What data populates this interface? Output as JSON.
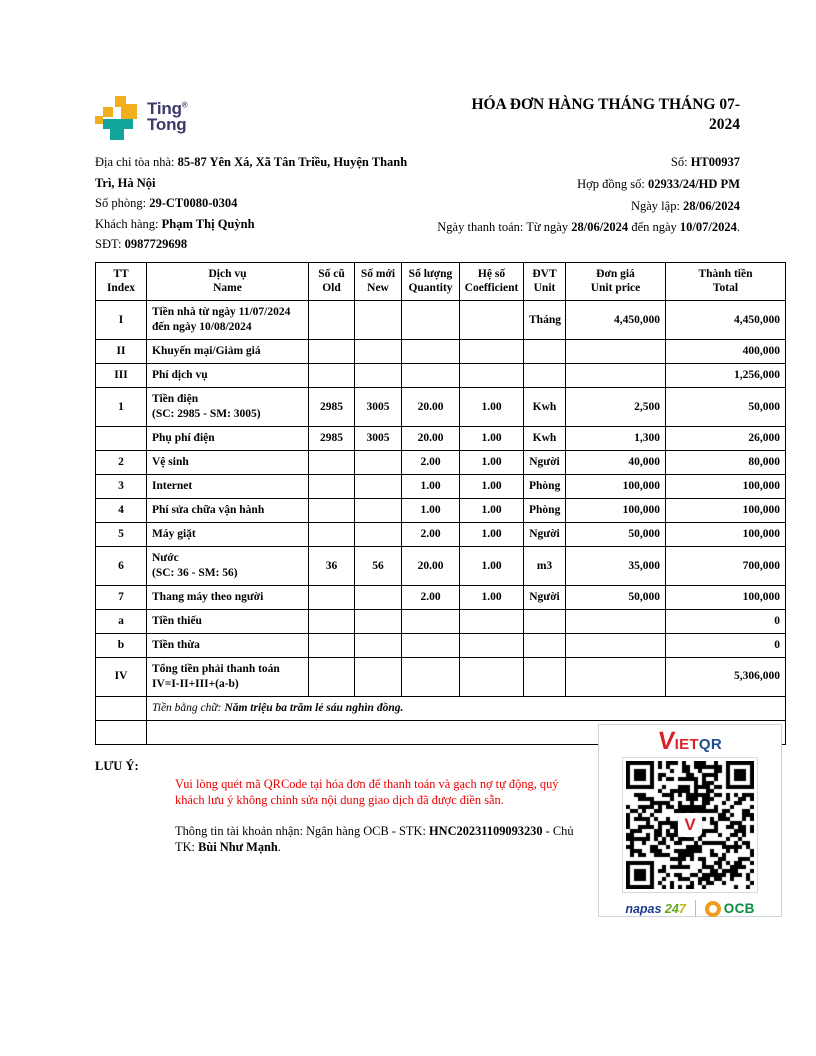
{
  "brand": {
    "name_line1": "Ting",
    "name_line2": "Tong",
    "registered_mark": "®",
    "color_yellow": "#F2AF1D",
    "color_teal": "#12A59B",
    "color_text": "#3D3A6B"
  },
  "title": "HÓA ĐƠN HÀNG THÁNG THÁNG 07-2024",
  "info_left": {
    "address_label": "Địa chỉ tòa nhà: ",
    "address_value": "85-87 Yên Xá, Xã Tân Triều, Huyện Thanh Trì, Hà Nội",
    "room_label": "Số phòng: ",
    "room_value": "29-CT0080-0304",
    "customer_label": "Khách hàng: ",
    "customer_value": "Phạm Thị Quỳnh",
    "phone_label": "SĐT: ",
    "phone_value": "0987729698"
  },
  "info_right": {
    "number_label": "Số: ",
    "number_value": "HT00937",
    "contract_label": "Hợp đồng số: ",
    "contract_value": "02933/24/HD PM",
    "issue_label": "Ngày lập: ",
    "issue_value": "28/06/2024",
    "payment_label": "Ngày thanh toán: Từ ngày ",
    "payment_from": "28/06/2024",
    "payment_mid": " đến ngày ",
    "payment_to": "10/07/2024",
    "payment_end": "."
  },
  "table": {
    "headers": [
      {
        "vi": "TT",
        "en": "Index"
      },
      {
        "vi": "Dịch vụ",
        "en": "Name"
      },
      {
        "vi": "Số cũ",
        "en": "Old"
      },
      {
        "vi": "Số mới",
        "en": "New"
      },
      {
        "vi": "Số lượng",
        "en": "Quantity"
      },
      {
        "vi": "Hệ số",
        "en": "Coefficient"
      },
      {
        "vi": "ĐVT",
        "en": "Unit"
      },
      {
        "vi": "Đơn giá",
        "en": "Unit price"
      },
      {
        "vi": "Thành tiền",
        "en": "Total"
      }
    ],
    "rows": [
      {
        "tt": "I",
        "name": "Tiền nhà từ ngày 11/07/2024",
        "name2": "đến ngày 10/08/2024",
        "old": "",
        "new": "",
        "qty": "",
        "coef": "",
        "unit": "Tháng",
        "price": "4,450,000",
        "total": "4,450,000"
      },
      {
        "tt": "II",
        "name": "Khuyến mại/Giảm giá",
        "name2": "",
        "old": "",
        "new": "",
        "qty": "",
        "coef": "",
        "unit": "",
        "price": "",
        "total": "400,000"
      },
      {
        "tt": "III",
        "name": "Phí dịch vụ",
        "name2": "",
        "old": "",
        "new": "",
        "qty": "",
        "coef": "",
        "unit": "",
        "price": "",
        "total": "1,256,000"
      },
      {
        "tt": "1",
        "name": "Tiền điện",
        "name2": "(SC: 2985 - SM: 3005)",
        "old": "2985",
        "new": "3005",
        "qty": "20.00",
        "coef": "1.00",
        "unit": "Kwh",
        "price": "2,500",
        "total": "50,000"
      },
      {
        "tt": "",
        "name": "Phụ phí điện",
        "name2": "",
        "old": "2985",
        "new": "3005",
        "qty": "20.00",
        "coef": "1.00",
        "unit": "Kwh",
        "price": "1,300",
        "total": "26,000"
      },
      {
        "tt": "2",
        "name": "Vệ sinh",
        "name2": "",
        "old": "",
        "new": "",
        "qty": "2.00",
        "coef": "1.00",
        "unit": "Người",
        "price": "40,000",
        "total": "80,000"
      },
      {
        "tt": "3",
        "name": "Internet",
        "name2": "",
        "old": "",
        "new": "",
        "qty": "1.00",
        "coef": "1.00",
        "unit": "Phòng",
        "price": "100,000",
        "total": "100,000"
      },
      {
        "tt": "4",
        "name": "Phí sửa chữa vận hành",
        "name2": "",
        "old": "",
        "new": "",
        "qty": "1.00",
        "coef": "1.00",
        "unit": "Phòng",
        "price": "100,000",
        "total": "100,000"
      },
      {
        "tt": "5",
        "name": "Máy giặt",
        "name2": "",
        "old": "",
        "new": "",
        "qty": "2.00",
        "coef": "1.00",
        "unit": "Người",
        "price": "50,000",
        "total": "100,000"
      },
      {
        "tt": "6",
        "name": "Nước",
        "name2": "(SC: 36 - SM: 56)",
        "old": "36",
        "new": "56",
        "qty": "20.00",
        "coef": "1.00",
        "unit": "m3",
        "price": "35,000",
        "total": "700,000"
      },
      {
        "tt": "7",
        "name": "Thang máy theo người",
        "name2": "",
        "old": "",
        "new": "",
        "qty": "2.00",
        "coef": "1.00",
        "unit": "Người",
        "price": "50,000",
        "total": "100,000"
      },
      {
        "tt": "a",
        "name": "Tiền thiếu",
        "name2": "",
        "old": "",
        "new": "",
        "qty": "",
        "coef": "",
        "unit": "",
        "price": "",
        "total": "0"
      },
      {
        "tt": "b",
        "name": "Tiền thừa",
        "name2": "",
        "old": "",
        "new": "",
        "qty": "",
        "coef": "",
        "unit": "",
        "price": "",
        "total": "0"
      },
      {
        "tt": "IV",
        "name": "Tổng tiền phải thanh toán",
        "name2": "IV=I-II+III+(a-b)",
        "old": "",
        "new": "",
        "qty": "",
        "coef": "",
        "unit": "",
        "price": "",
        "total": "5,306,000"
      }
    ],
    "amount_in_words_label": "Tiền bằng chữ: ",
    "amount_in_words_value": "Năm triệu ba trăm lẻ sáu nghìn đồng."
  },
  "payment_note": {
    "qr_warning": "Vui lòng quét mã QRCode tại hóa đơn để thanh toán và gạch nợ tự động, quý khách lưu ý không chỉnh sửa nội dung giao dịch đã được điền sẵn.",
    "account_label": "Thông tin tài khoản nhận: Ngân hàng OCB - STK: ",
    "account_number": "HNC20231109093230",
    "account_mid": " - Chủ TK: ",
    "account_holder": "Bùi Như Mạnh",
    "account_end": "."
  },
  "qr_panel": {
    "vietqr_v": "V",
    "vietqr_iet": "IET",
    "vietqr_qr": "QR",
    "qr_center_v": "V",
    "napas_text": "napas ",
    "napas_24": "24",
    "napas_7": "7",
    "ocb_text": "OCB"
  },
  "footer": {
    "note_label": "LƯU Ý:"
  }
}
